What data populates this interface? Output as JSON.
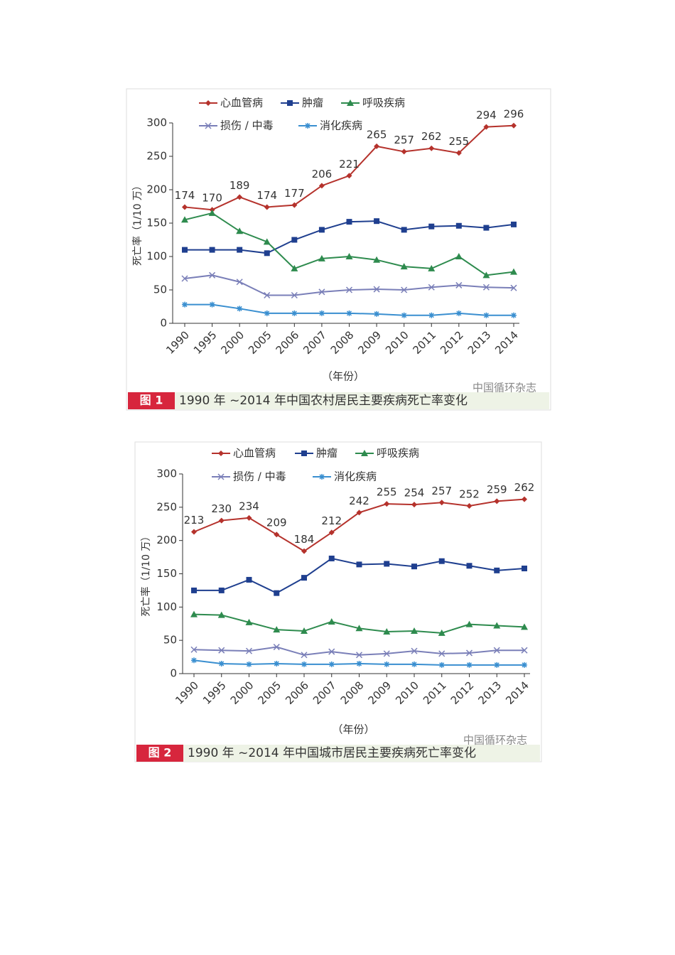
{
  "chart_data": [
    {
      "type": "line",
      "figure_label": "图 1",
      "title": "1990 年 ~2014 年中国农村居民主要疾病死亡率变化",
      "watermark": "中国循环杂志",
      "y_label": "死亡率（1/10 万）",
      "x_label": "（年份）",
      "categories": [
        "1990",
        "1995",
        "2000",
        "2005",
        "2006",
        "2007",
        "2008",
        "2009",
        "2010",
        "2011",
        "2012",
        "2013",
        "2014"
      ],
      "ylim": [
        0,
        300
      ],
      "yticks": [
        0,
        50,
        100,
        150,
        200,
        250,
        300
      ],
      "series": [
        {
          "name": "心血管病",
          "color": "#b5322c",
          "marker": "diamond",
          "show_labels": true,
          "values": [
            174,
            170,
            189,
            174,
            177,
            206,
            221,
            265,
            257,
            262,
            255,
            294,
            296
          ]
        },
        {
          "name": "肿瘤",
          "color": "#1f3f8f",
          "marker": "square",
          "values": [
            110,
            110,
            110,
            105,
            125,
            140,
            152,
            153,
            140,
            145,
            146,
            143,
            148
          ]
        },
        {
          "name": "呼吸疾病",
          "color": "#2e8b4e",
          "marker": "triangle",
          "values": [
            155,
            165,
            138,
            122,
            82,
            97,
            100,
            95,
            85,
            82,
            100,
            72,
            77
          ]
        },
        {
          "name": "损伤 / 中毒",
          "color": "#7a7fb8",
          "marker": "x",
          "values": [
            67,
            72,
            62,
            42,
            42,
            47,
            50,
            51,
            50,
            54,
            57,
            54,
            53
          ]
        },
        {
          "name": "消化疾病",
          "color": "#3a8fd0",
          "marker": "star",
          "values": [
            28,
            28,
            22,
            15,
            15,
            15,
            15,
            14,
            12,
            12,
            15,
            12,
            12
          ]
        }
      ]
    },
    {
      "type": "line",
      "figure_label": "图 2",
      "title": "1990 年 ~2014 年中国城市居民主要疾病死亡率变化",
      "watermark": "中国循环杂志",
      "y_label": "死亡率（1/10 万）",
      "x_label": "（年份）",
      "categories": [
        "1990",
        "1995",
        "2000",
        "2005",
        "2006",
        "2007",
        "2008",
        "2009",
        "2010",
        "2011",
        "2012",
        "2013",
        "2014"
      ],
      "ylim": [
        0,
        300
      ],
      "yticks": [
        0,
        50,
        100,
        150,
        200,
        250,
        300
      ],
      "series": [
        {
          "name": "心血管病",
          "color": "#b5322c",
          "marker": "diamond",
          "show_labels": true,
          "values": [
            213,
            230,
            234,
            209,
            184,
            212,
            242,
            255,
            254,
            257,
            252,
            259,
            262
          ]
        },
        {
          "name": "肿瘤",
          "color": "#1f3f8f",
          "marker": "square",
          "values": [
            125,
            125,
            141,
            121,
            144,
            173,
            164,
            165,
            161,
            169,
            162,
            155,
            158
          ]
        },
        {
          "name": "呼吸疾病",
          "color": "#2e8b4e",
          "marker": "triangle",
          "values": [
            89,
            88,
            77,
            66,
            64,
            78,
            68,
            63,
            64,
            61,
            74,
            72,
            70
          ]
        },
        {
          "name": "损伤 / 中毒",
          "color": "#7a7fb8",
          "marker": "x",
          "values": [
            36,
            35,
            34,
            40,
            28,
            33,
            28,
            30,
            34,
            30,
            31,
            35,
            35
          ]
        },
        {
          "name": "消化疾病",
          "color": "#3a8fd0",
          "marker": "star",
          "values": [
            20,
            15,
            14,
            15,
            14,
            14,
            15,
            14,
            14,
            13,
            13,
            13,
            13
          ]
        }
      ]
    }
  ]
}
